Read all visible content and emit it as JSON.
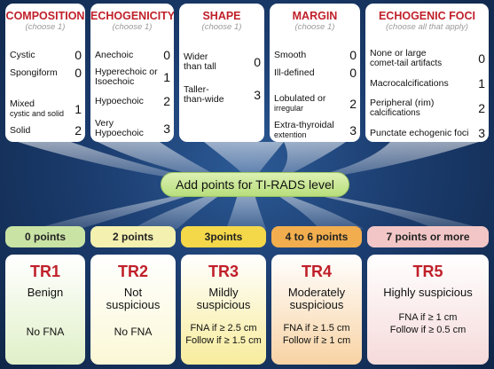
{
  "categories": [
    {
      "id": "composition",
      "title": "COMPOSITION",
      "subtitle": "(choose 1)",
      "items": [
        {
          "label": "Cystic",
          "sublabel": "",
          "points": "0"
        },
        {
          "label": "Spongiform",
          "sublabel": "",
          "points": "0"
        },
        {
          "label": "Mixed",
          "sublabel": "cystic and solid",
          "points": "1"
        },
        {
          "label": "Solid",
          "sublabel": "",
          "points": "2"
        }
      ]
    },
    {
      "id": "echogenicity",
      "title": "ECHOGENICITY",
      "subtitle": "(choose 1)",
      "items": [
        {
          "label": "Anechoic",
          "sublabel": "",
          "points": "0"
        },
        {
          "label": "Hyperechoic or",
          "sublabel": "Isoechoic",
          "points": "1"
        },
        {
          "label": "Hypoechoic",
          "sublabel": "",
          "points": "2"
        },
        {
          "label": "Very",
          "sublabel": "Hypoechoic",
          "points": "3"
        }
      ]
    },
    {
      "id": "shape",
      "title": "SHAPE",
      "subtitle": "(choose 1)",
      "items": [
        {
          "label": "Wider",
          "sublabel": "than tall",
          "points": "0"
        },
        {
          "label": "Taller-",
          "sublabel": "than-wide",
          "points": "3"
        }
      ]
    },
    {
      "id": "margin",
      "title": "MARGIN",
      "subtitle": "(choose 1)",
      "items": [
        {
          "label": "Smooth",
          "sublabel": "",
          "points": "0"
        },
        {
          "label": "Ill-defined",
          "sublabel": "",
          "points": "0"
        },
        {
          "label": "Lobulated or",
          "sublabel": "irregular",
          "points": "2"
        },
        {
          "label": "Extra-thyroidal",
          "sublabel": "extention",
          "points": "3"
        }
      ]
    },
    {
      "id": "foci",
      "title": "ECHOGENIC FOCI",
      "subtitle": "(choose all that apply)",
      "items": [
        {
          "label": "None or large",
          "sublabel": "comet-tail artifacts",
          "points": "0"
        },
        {
          "label": "Macrocalcifications",
          "sublabel": "",
          "points": "1"
        },
        {
          "label": "Peripheral (rim)",
          "sublabel": "calcifications",
          "points": "2"
        },
        {
          "label": "Punctate echogenic foci",
          "sublabel": "",
          "points": "3"
        }
      ]
    }
  ],
  "center_label": "Add points for TI-RADS level",
  "levels": [
    {
      "points": "0 points",
      "tr": "TR1",
      "desc1": "Benign",
      "desc2": "",
      "fna1": "No FNA",
      "fna2": "",
      "pill_color": "#c9e3a5",
      "box_color": "#e0f0c8"
    },
    {
      "points": "2 points",
      "tr": "TR2",
      "desc1": "Not",
      "desc2": "suspicious",
      "fna1": "No FNA",
      "fna2": "",
      "pill_color": "#f4f0b0",
      "box_color": "#fbf8d6"
    },
    {
      "points": "3points",
      "tr": "TR3",
      "desc1": "Mildly",
      "desc2": "suspicious",
      "fna1": "FNA if ≥ 2.5 cm",
      "fna2": "Follow if ≥ 1.5 cm",
      "pill_color": "#f4d84a",
      "box_color": "#f8ec9c"
    },
    {
      "points": "4 to 6 points",
      "tr": "TR4",
      "desc1": "Moderately",
      "desc2": "suspicious",
      "fna1": "FNA if ≥ 1.5 cm",
      "fna2": "Follow if ≥ 1 cm",
      "pill_color": "#f2ae4e",
      "box_color": "#f8d3a4"
    },
    {
      "points": "7 points or more",
      "tr": "TR5",
      "desc1": "Highly suspicious",
      "desc2": "",
      "fna1": "FNA if ≥ 1 cm",
      "fna2": "Follow if ≥ 0.5 cm",
      "pill_color": "#f2c6c6",
      "box_color": "#f6dada"
    }
  ]
}
